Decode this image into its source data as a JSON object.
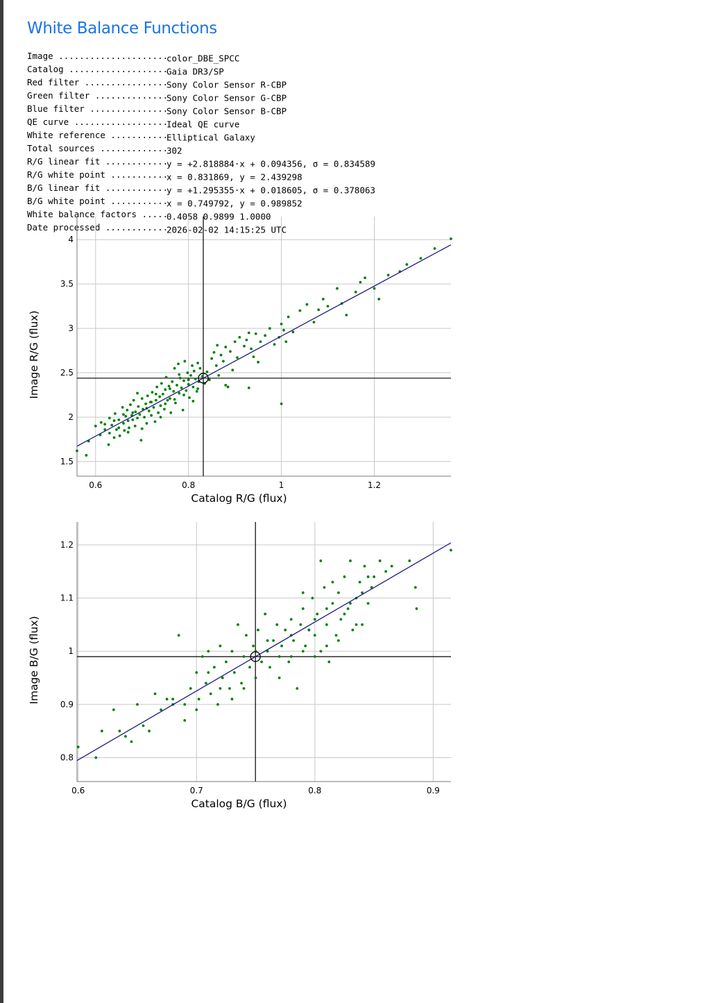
{
  "title": "White Balance Functions",
  "info": [
    {
      "key": "Image",
      "value": "color_DBE_SPCC"
    },
    {
      "key": "Catalog",
      "value": "Gaia DR3/SP"
    },
    {
      "key": "Red filter",
      "value": "Sony Color Sensor R-CBP"
    },
    {
      "key": "Green filter",
      "value": "Sony Color Sensor G-CBP"
    },
    {
      "key": "Blue filter",
      "value": "Sony Color Sensor B-CBP"
    },
    {
      "key": "QE curve",
      "value": "Ideal QE curve"
    },
    {
      "key": "White reference",
      "value": "Elliptical Galaxy"
    },
    {
      "key": "Total sources",
      "value": "302"
    },
    {
      "key": "R/G linear fit",
      "value": "y = +2.818884·x + 0.094356, σ = 0.834589"
    },
    {
      "key": "R/G white point",
      "value": "x = 0.831869, y = 2.439298"
    },
    {
      "key": "B/G linear fit",
      "value": "y = +1.295355·x + 0.018605, σ = 0.378063"
    },
    {
      "key": "B/G white point",
      "value": "x = 0.749792, y = 0.989852"
    },
    {
      "key": "White balance factors",
      "value": "0.4058 0.9899 1.0000"
    },
    {
      "key": "Date processed",
      "value": "2026-02-02 14:15:25 UTC"
    }
  ],
  "colors": {
    "title": "#1a73e8",
    "points": "#008000",
    "fit_line": "#1a1a80",
    "grid": "#c8c8c8",
    "crosshair": "#000000"
  },
  "chart_data": [
    {
      "type": "scatter",
      "xlabel": "Catalog R/G (flux)",
      "ylabel": "Image R/G (flux)",
      "xlim": [
        0.56,
        1.365
      ],
      "ylim": [
        1.335,
        4.26
      ],
      "xticks": [
        0.6,
        0.8,
        1,
        1.2
      ],
      "xtick_labels": [
        "0.6",
        "0.8",
        "1",
        "1.2"
      ],
      "yticks": [
        1.5,
        2,
        2.5,
        3,
        3.5,
        4
      ],
      "ytick_labels": [
        "1.5",
        "2",
        "2.5",
        "3",
        "3.5",
        "4"
      ],
      "grid": true,
      "fit": {
        "slope": 2.818884,
        "intercept": 0.094356
      },
      "white_point": {
        "x": 0.831869,
        "y": 2.439298
      },
      "points": [
        [
          0.56,
          1.62
        ],
        [
          0.58,
          1.57
        ],
        [
          0.585,
          1.73
        ],
        [
          0.612,
          1.94
        ],
        [
          0.62,
          1.92
        ],
        [
          0.628,
          1.69
        ],
        [
          0.63,
          1.82
        ],
        [
          0.635,
          1.91
        ],
        [
          0.64,
          1.77
        ],
        [
          0.642,
          2.04
        ],
        [
          0.645,
          1.86
        ],
        [
          0.65,
          1.97
        ],
        [
          0.652,
          1.79
        ],
        [
          0.658,
          2.11
        ],
        [
          0.66,
          1.93
        ],
        [
          0.662,
          1.85
        ],
        [
          0.665,
          2.01
        ],
        [
          0.668,
          2.08
        ],
        [
          0.67,
          1.96
        ],
        [
          0.672,
          1.88
        ],
        [
          0.675,
          2.14
        ],
        [
          0.678,
          2.02
        ],
        [
          0.68,
          1.97
        ],
        [
          0.682,
          2.19
        ],
        [
          0.685,
          1.9
        ],
        [
          0.686,
          2.06
        ],
        [
          0.69,
          1.99
        ],
        [
          0.692,
          2.12
        ],
        [
          0.695,
          2.03
        ],
        [
          0.698,
          1.74
        ],
        [
          0.7,
          2.21
        ],
        [
          0.702,
          2.09
        ],
        [
          0.705,
          2.0
        ],
        [
          0.708,
          2.15
        ],
        [
          0.71,
          1.93
        ],
        [
          0.712,
          2.24
        ],
        [
          0.715,
          2.07
        ],
        [
          0.718,
          2.17
        ],
        [
          0.72,
          2.02
        ],
        [
          0.722,
          2.28
        ],
        [
          0.725,
          2.11
        ],
        [
          0.728,
          1.95
        ],
        [
          0.73,
          2.19
        ],
        [
          0.732,
          2.34
        ],
        [
          0.735,
          2.05
        ],
        [
          0.738,
          2.23
        ],
        [
          0.74,
          2.13
        ],
        [
          0.742,
          2.38
        ],
        [
          0.745,
          2.26
        ],
        [
          0.748,
          2.09
        ],
        [
          0.75,
          2.31
        ],
        [
          0.752,
          2.45
        ],
        [
          0.755,
          2.19
        ],
        [
          0.758,
          2.35
        ],
        [
          0.76,
          2.21
        ],
        [
          0.762,
          2.05
        ],
        [
          0.765,
          2.4
        ],
        [
          0.768,
          2.29
        ],
        [
          0.77,
          2.55
        ],
        [
          0.772,
          2.16
        ],
        [
          0.775,
          2.36
        ],
        [
          0.778,
          2.6
        ],
        [
          0.78,
          2.27
        ],
        [
          0.782,
          2.44
        ],
        [
          0.785,
          2.33
        ],
        [
          0.788,
          2.08
        ],
        [
          0.79,
          2.41
        ],
        [
          0.792,
          2.63
        ],
        [
          0.795,
          2.3
        ],
        [
          0.798,
          2.5
        ],
        [
          0.8,
          2.37
        ],
        [
          0.802,
          2.22
        ],
        [
          0.805,
          2.47
        ],
        [
          0.808,
          2.58
        ],
        [
          0.81,
          2.34
        ],
        [
          0.812,
          2.52
        ],
        [
          0.815,
          2.43
        ],
        [
          0.818,
          2.29
        ],
        [
          0.82,
          2.61
        ],
        [
          0.822,
          2.4
        ],
        [
          0.825,
          2.55
        ],
        [
          0.83,
          2.46
        ],
        [
          0.835,
          2.38
        ],
        [
          0.84,
          2.51
        ],
        [
          0.845,
          2.42
        ],
        [
          0.85,
          2.66
        ],
        [
          0.855,
          2.73
        ],
        [
          0.86,
          2.58
        ],
        [
          0.862,
          2.81
        ],
        [
          0.865,
          2.47
        ],
        [
          0.87,
          2.7
        ],
        [
          0.875,
          2.63
        ],
        [
          0.88,
          2.79
        ],
        [
          0.885,
          2.34
        ],
        [
          0.89,
          2.74
        ],
        [
          0.895,
          2.53
        ],
        [
          0.9,
          2.85
        ],
        [
          0.905,
          2.67
        ],
        [
          0.91,
          2.9
        ],
        [
          0.92,
          2.8
        ],
        [
          0.925,
          2.87
        ],
        [
          0.93,
          2.95
        ],
        [
          0.935,
          2.77
        ],
        [
          0.94,
          2.68
        ],
        [
          0.945,
          2.94
        ],
        [
          0.95,
          2.62
        ],
        [
          0.955,
          2.85
        ],
        [
          0.965,
          2.92
        ],
        [
          0.975,
          3.0
        ],
        [
          0.985,
          2.82
        ],
        [
          0.995,
          2.9
        ],
        [
          1.0,
          3.05
        ],
        [
          1.005,
          2.98
        ],
        [
          1.01,
          2.85
        ],
        [
          1.015,
          3.13
        ],
        [
          1.025,
          2.96
        ],
        [
          1.04,
          3.2
        ],
        [
          1.055,
          3.27
        ],
        [
          1.07,
          3.07
        ],
        [
          1.08,
          3.21
        ],
        [
          1.09,
          3.33
        ],
        [
          1.1,
          3.25
        ],
        [
          1.12,
          3.45
        ],
        [
          1.13,
          3.28
        ],
        [
          1.14,
          3.15
        ],
        [
          1.16,
          3.41
        ],
        [
          1.17,
          3.52
        ],
        [
          1.18,
          3.57
        ],
        [
          1.2,
          3.45
        ],
        [
          1.21,
          3.33
        ],
        [
          1.23,
          3.6
        ],
        [
          1.255,
          3.64
        ],
        [
          1.27,
          3.72
        ],
        [
          1.3,
          3.79
        ],
        [
          1.33,
          3.9
        ],
        [
          1.365,
          4.01
        ],
        [
          0.68,
          2.05
        ],
        [
          0.69,
          2.27
        ],
        [
          0.7,
          1.87
        ],
        [
          0.71,
          2.1
        ],
        [
          0.72,
          2.17
        ],
        [
          0.73,
          2.26
        ],
        [
          0.74,
          2.0
        ],
        [
          0.75,
          2.15
        ],
        [
          0.76,
          2.32
        ],
        [
          0.77,
          2.2
        ],
        [
          0.78,
          2.48
        ],
        [
          0.79,
          2.25
        ],
        [
          0.8,
          2.42
        ],
        [
          0.81,
          2.18
        ],
        [
          0.82,
          2.32
        ],
        [
          0.66,
          2.03
        ],
        [
          0.67,
          1.83
        ],
        [
          0.65,
          1.88
        ],
        [
          0.64,
          1.96
        ],
        [
          0.63,
          1.99
        ],
        [
          0.62,
          1.86
        ],
        [
          0.6,
          1.9
        ],
        [
          0.61,
          1.8
        ],
        [
          1.0,
          2.15
        ],
        [
          0.93,
          2.33
        ],
        [
          0.88,
          2.36
        ]
      ]
    },
    {
      "type": "scatter",
      "xlabel": "Catalog B/G (flux)",
      "ylabel": "Image B/G (flux)",
      "xlim": [
        0.599,
        0.915
      ],
      "ylim": [
        0.755,
        1.243
      ],
      "xticks": [
        0.6,
        0.7,
        0.8,
        0.9
      ],
      "xtick_labels": [
        "0.6",
        "0.7",
        "0.8",
        "0.9"
      ],
      "yticks": [
        0.8,
        0.9,
        1,
        1.1,
        1.2
      ],
      "ytick_labels": [
        "0.8",
        "0.9",
        "1",
        "1.1",
        "1.2"
      ],
      "grid": true,
      "fit": {
        "slope": 1.295355,
        "intercept": 0.018605
      },
      "white_point": {
        "x": 0.749792,
        "y": 0.989852
      },
      "points": [
        [
          0.6,
          0.82
        ],
        [
          0.615,
          0.8
        ],
        [
          0.62,
          0.85
        ],
        [
          0.63,
          0.89
        ],
        [
          0.635,
          0.85
        ],
        [
          0.64,
          0.84
        ],
        [
          0.645,
          0.83
        ],
        [
          0.65,
          0.9
        ],
        [
          0.655,
          0.86
        ],
        [
          0.66,
          0.85
        ],
        [
          0.665,
          0.92
        ],
        [
          0.67,
          0.89
        ],
        [
          0.675,
          0.91
        ],
        [
          0.68,
          0.9
        ],
        [
          0.685,
          1.03
        ],
        [
          0.69,
          0.87
        ],
        [
          0.695,
          0.93
        ],
        [
          0.7,
          0.96
        ],
        [
          0.702,
          0.91
        ],
        [
          0.705,
          0.99
        ],
        [
          0.708,
          0.94
        ],
        [
          0.71,
          1.0
        ],
        [
          0.712,
          0.92
        ],
        [
          0.715,
          0.97
        ],
        [
          0.718,
          0.9
        ],
        [
          0.72,
          1.01
        ],
        [
          0.722,
          0.95
        ],
        [
          0.725,
          0.98
        ],
        [
          0.728,
          0.93
        ],
        [
          0.73,
          1.0
        ],
        [
          0.732,
          0.96
        ],
        [
          0.735,
          1.05
        ],
        [
          0.738,
          0.94
        ],
        [
          0.74,
          0.99
        ],
        [
          0.742,
          1.03
        ],
        [
          0.745,
          0.97
        ],
        [
          0.748,
          1.01
        ],
        [
          0.75,
          0.95
        ],
        [
          0.752,
          1.04
        ],
        [
          0.755,
          0.98
        ],
        [
          0.758,
          1.07
        ],
        [
          0.76,
          1.0
        ],
        [
          0.762,
          0.97
        ],
        [
          0.765,
          1.02
        ],
        [
          0.768,
          1.05
        ],
        [
          0.77,
          0.99
        ],
        [
          0.772,
          1.01
        ],
        [
          0.775,
          1.04
        ],
        [
          0.778,
          0.98
        ],
        [
          0.78,
          1.06
        ],
        [
          0.782,
          1.02
        ],
        [
          0.785,
          0.93
        ],
        [
          0.788,
          1.05
        ],
        [
          0.79,
          1.08
        ],
        [
          0.792,
          1.01
        ],
        [
          0.795,
          1.04
        ],
        [
          0.798,
          1.1
        ],
        [
          0.8,
          1.03
        ],
        [
          0.802,
          1.07
        ],
        [
          0.805,
          1.0
        ],
        [
          0.808,
          1.12
        ],
        [
          0.81,
          1.05
        ],
        [
          0.812,
          0.98
        ],
        [
          0.815,
          1.09
        ],
        [
          0.818,
          1.03
        ],
        [
          0.82,
          1.11
        ],
        [
          0.822,
          1.06
        ],
        [
          0.825,
          1.14
        ],
        [
          0.828,
          1.08
        ],
        [
          0.83,
          1.17
        ],
        [
          0.832,
          1.04
        ],
        [
          0.835,
          1.1
        ],
        [
          0.838,
          1.13
        ],
        [
          0.84,
          1.05
        ],
        [
          0.842,
          1.16
        ],
        [
          0.845,
          1.09
        ],
        [
          0.848,
          1.12
        ],
        [
          0.85,
          1.14
        ],
        [
          0.855,
          1.17
        ],
        [
          0.86,
          1.15
        ],
        [
          0.865,
          1.16
        ],
        [
          0.88,
          1.17
        ],
        [
          0.885,
          1.12
        ],
        [
          0.886,
          1.08
        ],
        [
          0.915,
          1.19
        ],
        [
          0.77,
          0.95
        ],
        [
          0.78,
          0.99
        ],
        [
          0.79,
          1.0
        ],
        [
          0.8,
          1.06
        ],
        [
          0.81,
          1.08
        ],
        [
          0.82,
          1.02
        ],
        [
          0.83,
          1.09
        ],
        [
          0.84,
          1.11
        ],
        [
          0.76,
          1.02
        ],
        [
          0.75,
          1.0
        ],
        [
          0.74,
          0.93
        ],
        [
          0.73,
          0.91
        ],
        [
          0.72,
          0.93
        ],
        [
          0.71,
          0.96
        ],
        [
          0.7,
          0.89
        ],
        [
          0.69,
          0.9
        ],
        [
          0.68,
          0.91
        ],
        [
          0.805,
          1.17
        ],
        [
          0.795,
          1.04
        ],
        [
          0.815,
          1.13
        ],
        [
          0.825,
          1.07
        ],
        [
          0.835,
          1.05
        ],
        [
          0.845,
          1.14
        ],
        [
          0.81,
          1.01
        ],
        [
          0.8,
          0.99
        ],
        [
          0.79,
          1.11
        ],
        [
          0.78,
          1.03
        ]
      ]
    }
  ]
}
